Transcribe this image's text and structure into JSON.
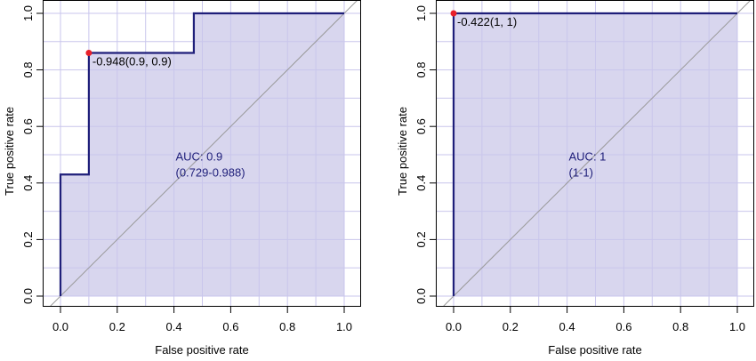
{
  "colors": {
    "roc_line": "#1f1f7a",
    "fill": "#d8d6ee",
    "grid": "#c9c6ec",
    "diagonal": "#999999",
    "point": "#e8202a",
    "text": "#1f1f7a",
    "axis": "#000000"
  },
  "chart_data": [
    {
      "type": "line",
      "title": "",
      "xlabel": "False positive rate",
      "ylabel": "True positive rate",
      "xlim": [
        0,
        1
      ],
      "ylim": [
        0,
        1
      ],
      "grid": true,
      "ticks": [
        "0.0",
        "0.2",
        "0.4",
        "0.6",
        "0.8",
        "1.0"
      ],
      "series": [
        {
          "x": [
            0,
            0,
            0.1,
            0.1,
            0.47,
            0.47,
            1
          ],
          "y": [
            0,
            0.43,
            0.43,
            0.86,
            0.86,
            1,
            1
          ]
        }
      ],
      "point": {
        "x": 0.1,
        "y": 0.86,
        "label": "-0.948(0.9, 0.9)"
      },
      "auc_label": "AUC: 0.9",
      "ci_label": "(0.729-0.988)",
      "auc_pos": [
        0.5,
        0.48
      ]
    },
    {
      "type": "line",
      "title": "",
      "xlabel": "False positive rate",
      "ylabel": "True positive rate",
      "xlim": [
        0,
        1
      ],
      "ylim": [
        0,
        1
      ],
      "grid": true,
      "ticks": [
        "0.0",
        "0.2",
        "0.4",
        "0.6",
        "0.8",
        "1.0"
      ],
      "series": [
        {
          "x": [
            0,
            0,
            1
          ],
          "y": [
            0,
            1,
            1
          ]
        }
      ],
      "point": {
        "x": 0,
        "y": 1,
        "label": "-0.422(1, 1)"
      },
      "auc_label": "AUC: 1",
      "ci_label": "(1-1)",
      "auc_pos": [
        0.5,
        0.48
      ]
    }
  ]
}
